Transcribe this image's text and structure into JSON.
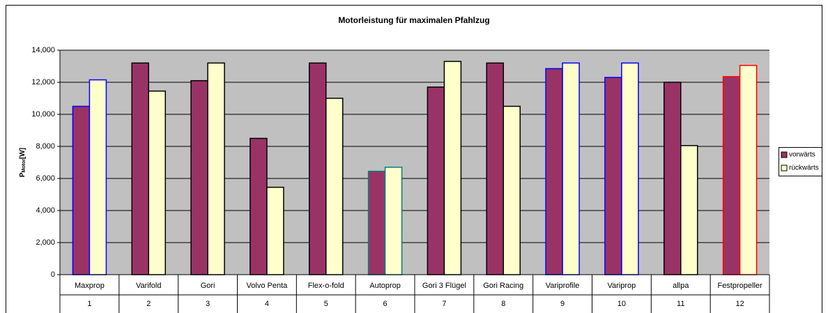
{
  "chart_data": {
    "type": "bar",
    "title": "Motorleistung für maximalen Pfahlzug",
    "y_label": [
      "P",
      "Motor",
      "[W]"
    ],
    "categories": [
      "Maxprop",
      "Varifold",
      "Gori",
      "Volvo Penta",
      "Flex-o-fold",
      "Autoprop",
      "Gori 3 Flügel",
      "Gori Racing",
      "Variprofile",
      "Variprop",
      "allpa",
      "Festpropeller"
    ],
    "category_numbers": [
      1,
      2,
      3,
      4,
      5,
      6,
      7,
      8,
      9,
      10,
      11,
      12
    ],
    "border_colors": [
      "#0000ff",
      "#000000",
      "#000000",
      "#000000",
      "#000000",
      "#008080",
      "#000000",
      "#000000",
      "#0000ff",
      "#0000ff",
      "#000000",
      "#ff0000"
    ],
    "series": [
      {
        "name": "vorwärts",
        "color": "#993366",
        "values": [
          10500,
          13200,
          12100,
          8500,
          13200,
          6450,
          11700,
          13200,
          12850,
          12300,
          12000,
          12350
        ]
      },
      {
        "name": "rückwärts",
        "color": "#ffffcc",
        "values": [
          12150,
          11450,
          13200,
          5450,
          11000,
          6700,
          13300,
          10500,
          13200,
          13200,
          8050,
          13050
        ]
      }
    ],
    "ylim": [
      0,
      14000
    ],
    "yticks": [
      0,
      {
        "value": 2000,
        "label": "2,000"
      },
      {
        "value": 4000,
        "label": "4,000"
      },
      {
        "value": 6000,
        "label": "6,000"
      },
      {
        "value": 8000,
        "label": "8,000"
      },
      {
        "value": 10000,
        "label": "10,000"
      },
      {
        "value": 12000,
        "label": "12,000"
      },
      {
        "value": 14000,
        "label": "14,000"
      }
    ],
    "grid": true,
    "legend": "right"
  }
}
